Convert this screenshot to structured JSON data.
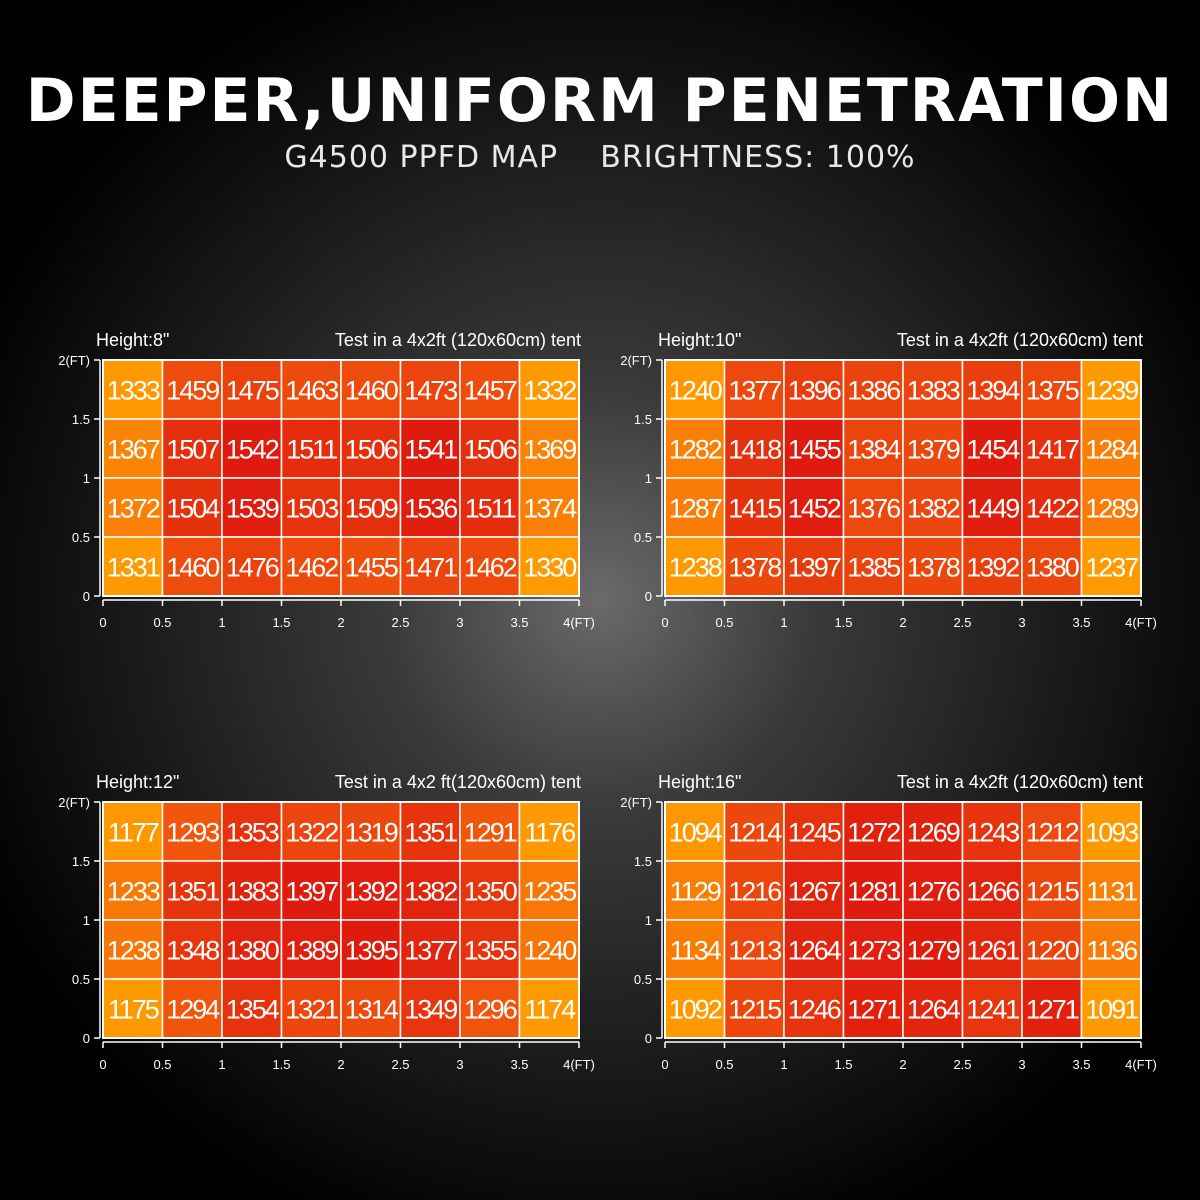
{
  "header": {
    "title": "DEEPER,UNIFORM PENETRATION",
    "subtitle": "G4500 PPFD MAP    BRIGHTNESS: 100%"
  },
  "colors": {
    "low": "#ff9a00",
    "mid": "#f25a0c",
    "high": "#df1a0e",
    "grid": "#ffffff"
  },
  "chart_data": [
    {
      "type": "heatmap",
      "height_label": "Height:8\"",
      "tent_label": "Test in a 4x2ft (120x60cm) tent",
      "x_ticks": [
        "0",
        "0.5",
        "1",
        "1.5",
        "2",
        "2.5",
        "3",
        "3.5",
        "4(FT)"
      ],
      "y_ticks": [
        "2(FT)",
        "1.5",
        "1",
        "0.5",
        "0"
      ],
      "values": [
        [
          1333,
          1459,
          1475,
          1463,
          1460,
          1473,
          1457,
          1332
        ],
        [
          1367,
          1507,
          1542,
          1511,
          1506,
          1541,
          1506,
          1369
        ],
        [
          1372,
          1504,
          1539,
          1503,
          1509,
          1536,
          1511,
          1374
        ],
        [
          1331,
          1460,
          1476,
          1462,
          1455,
          1471,
          1462,
          1330
        ]
      ]
    },
    {
      "type": "heatmap",
      "height_label": "Height:10\"",
      "tent_label": "Test in a 4x2ft (120x60cm) tent",
      "x_ticks": [
        "0",
        "0.5",
        "1",
        "1.5",
        "2",
        "2.5",
        "3",
        "3.5",
        "4(FT)"
      ],
      "y_ticks": [
        "2(FT)",
        "1.5",
        "1",
        "0.5",
        "0"
      ],
      "values": [
        [
          1240,
          1377,
          1396,
          1386,
          1383,
          1394,
          1375,
          1239
        ],
        [
          1282,
          1418,
          1455,
          1384,
          1379,
          1454,
          1417,
          1284
        ],
        [
          1287,
          1415,
          1452,
          1376,
          1382,
          1449,
          1422,
          1289
        ],
        [
          1238,
          1378,
          1397,
          1385,
          1378,
          1392,
          1380,
          1237
        ]
      ]
    },
    {
      "type": "heatmap",
      "height_label": "Height:12\"",
      "tent_label": "Test in a 4x2 ft(120x60cm) tent",
      "x_ticks": [
        "0",
        "0.5",
        "1",
        "1.5",
        "2",
        "2.5",
        "3",
        "3.5",
        "4(FT)"
      ],
      "y_ticks": [
        "2(FT)",
        "1.5",
        "1",
        "0.5",
        "0"
      ],
      "values": [
        [
          1177,
          1293,
          1353,
          1322,
          1319,
          1351,
          1291,
          1176
        ],
        [
          1233,
          1351,
          1383,
          1397,
          1392,
          1382,
          1350,
          1235
        ],
        [
          1238,
          1348,
          1380,
          1389,
          1395,
          1377,
          1355,
          1240
        ],
        [
          1175,
          1294,
          1354,
          1321,
          1314,
          1349,
          1296,
          1174
        ]
      ]
    },
    {
      "type": "heatmap",
      "height_label": "Height:16\"",
      "tent_label": "Test in a 4x2ft (120x60cm) tent",
      "x_ticks": [
        "0",
        "0.5",
        "1",
        "1.5",
        "2",
        "2.5",
        "3",
        "3.5",
        "4(FT)"
      ],
      "y_ticks": [
        "2(FT)",
        "1.5",
        "1",
        "0.5",
        "0"
      ],
      "values": [
        [
          1094,
          1214,
          1245,
          1272,
          1269,
          1243,
          1212,
          1093
        ],
        [
          1129,
          1216,
          1267,
          1281,
          1276,
          1266,
          1215,
          1131
        ],
        [
          1134,
          1213,
          1264,
          1273,
          1279,
          1261,
          1220,
          1136
        ],
        [
          1092,
          1215,
          1246,
          1271,
          1264,
          1241,
          1271,
          1091
        ]
      ]
    }
  ]
}
